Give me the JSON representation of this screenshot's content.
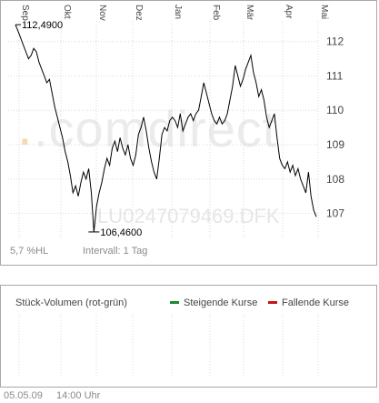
{
  "chart_data": [
    {
      "type": "line",
      "x_tick_labels": [
        "Sep",
        "Okt",
        "Nov",
        "Dez",
        "Jan",
        "Feb",
        "Mär",
        "Apr",
        "Mai"
      ],
      "y_ticks": [
        107,
        108,
        109,
        110,
        111,
        112
      ],
      "ylim": [
        106.3,
        112.6
      ],
      "grid": true,
      "watermark": ".comdirect",
      "isin_watermark": "LU0247079469.DFK",
      "annotations": {
        "max": "112,4900",
        "min": "106,4600"
      },
      "series": [
        {
          "values": [
            112.49,
            112.3,
            112.1,
            111.9,
            111.7,
            111.5,
            111.6,
            111.8,
            111.7,
            111.4,
            111.2,
            111.0,
            110.8,
            110.9,
            110.5,
            110.1,
            109.8,
            109.5,
            109.2,
            108.8,
            108.5,
            108.1,
            107.6,
            107.8,
            107.5,
            107.9,
            108.2,
            108.0,
            108.3,
            107.6,
            106.46,
            107.2,
            107.6,
            107.9,
            108.3,
            108.6,
            108.4,
            108.9,
            109.1,
            108.8,
            109.2,
            108.9,
            108.7,
            109.0,
            108.6,
            108.4,
            108.7,
            109.3,
            109.5,
            109.8,
            109.4,
            108.9,
            108.5,
            108.2,
            108.0,
            108.6,
            109.3,
            109.5,
            109.4,
            109.7,
            109.8,
            109.7,
            109.5,
            109.9,
            109.4,
            109.6,
            109.8,
            109.9,
            109.7,
            109.9,
            110.0,
            110.4,
            110.8,
            110.5,
            110.2,
            109.9,
            109.7,
            109.6,
            109.8,
            109.6,
            109.7,
            109.9,
            110.3,
            110.7,
            111.3,
            111.0,
            110.7,
            110.9,
            111.2,
            111.4,
            111.6,
            111.1,
            110.8,
            110.4,
            110.6,
            110.3,
            109.8,
            109.5,
            109.7,
            109.9,
            109.2,
            108.6,
            108.4,
            108.3,
            108.5,
            108.2,
            108.4,
            108.1,
            108.3,
            108.0,
            107.8,
            107.6,
            108.2,
            107.5,
            107.1,
            106.9
          ]
        }
      ]
    },
    {
      "type": "bar",
      "title": "Stück-Volumen (rot-grün)",
      "legend": [
        {
          "name": "Steigende Kurse",
          "color": "#1a8a2e"
        },
        {
          "name": "Fallende Kurse",
          "color": "#cc1111"
        }
      ],
      "series": []
    }
  ],
  "info": {
    "performance": "5,7 %HL",
    "interval": "Intervall: 1 Tag"
  },
  "footer": {
    "date": "05.05.09",
    "time": "14:00 Uhr"
  },
  "colors": {
    "line": "#000000",
    "grid": "#d9d9d9",
    "watermark_dot": "#f7d8b0",
    "watermark_text": "#e8e8e8"
  }
}
